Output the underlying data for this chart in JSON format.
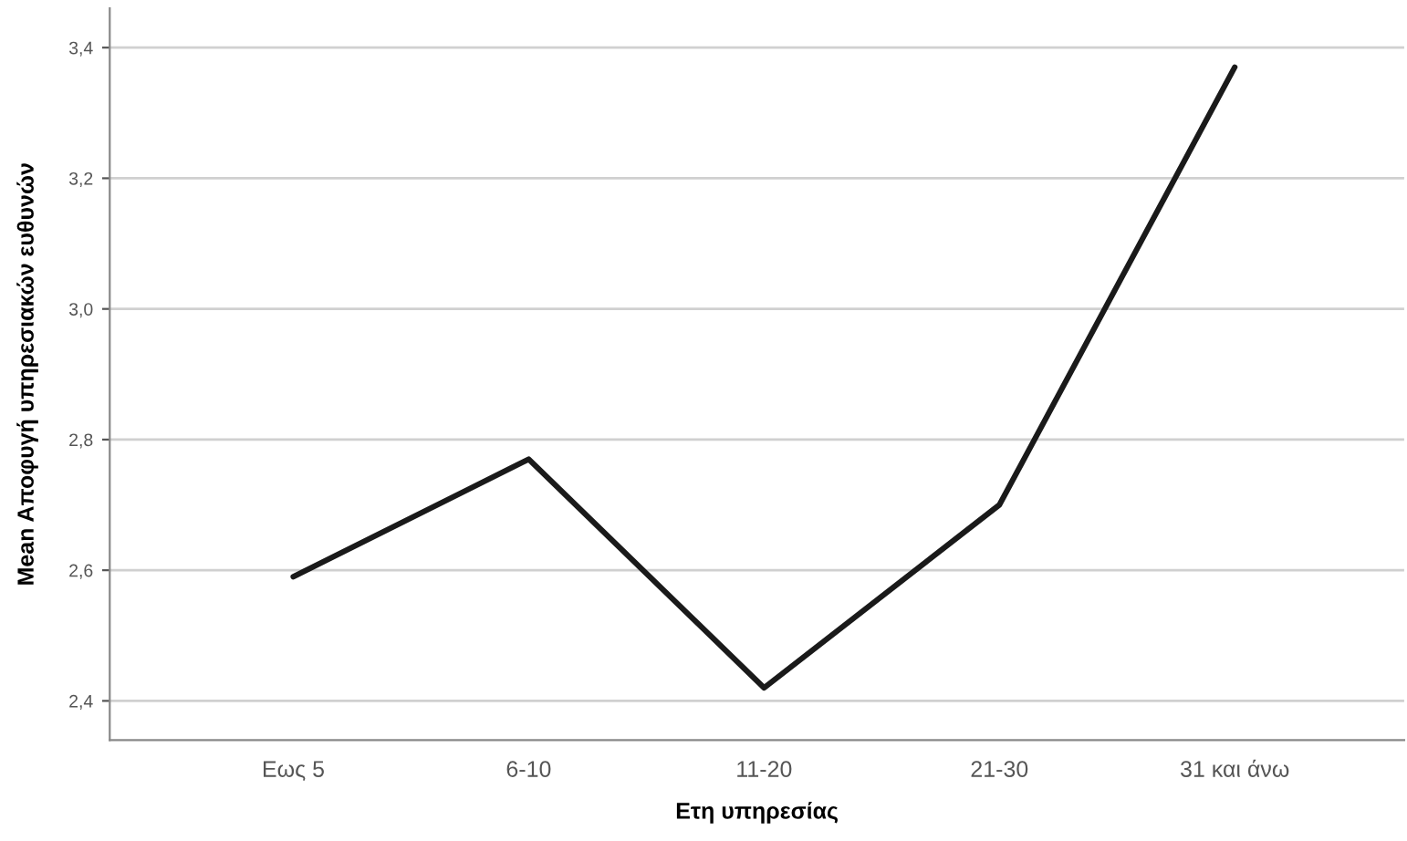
{
  "chart_data": {
    "type": "line",
    "xlabel": "Ετη υπηρεσίας",
    "ylabel": "Mean Αποφυγή υπηρεσιακών ευθυνών",
    "categories": [
      "Εως 5",
      "6-10",
      "11-20",
      "21-30",
      "31 και άνω"
    ],
    "series": [
      {
        "color": "#1a1a1a",
        "values": [
          2.59,
          2.77,
          2.42,
          2.7,
          3.37
        ]
      }
    ],
    "ylim": [
      2.34,
      3.46
    ],
    "yticks": [
      {
        "value": 2.4,
        "label": "2,4"
      },
      {
        "value": 2.6,
        "label": "2,6"
      },
      {
        "value": 2.8,
        "label": "2,8"
      },
      {
        "value": 3.0,
        "label": "3,0"
      },
      {
        "value": 3.2,
        "label": "3,2"
      },
      {
        "value": 3.4,
        "label": "3,4"
      }
    ],
    "grid": "y",
    "marker": "none",
    "line_style": "solid"
  }
}
